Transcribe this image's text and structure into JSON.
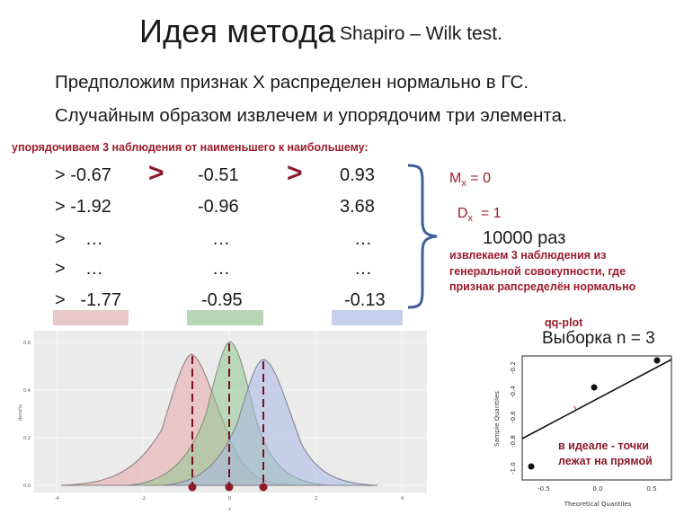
{
  "slide": {
    "title": "Идея метода",
    "subtitle": "Shapiro – Wilk test.",
    "line1": "Предположим признак X распределен нормально в ГС.",
    "line2": "Случайным образом извлечем и упорядочим три элемента.",
    "order_note": "упорядочиваем 3 наблюдения от наименьшего к наибольшему:"
  },
  "table": {
    "rows": [
      {
        "prefix": "> -0.67",
        "mid": "-0.51",
        "right": "0.93"
      },
      {
        "prefix": "> -1.92",
        "mid": "-0.96",
        "right": "3.68"
      },
      {
        "prefix": ">    …",
        "mid": "…",
        "right": "…"
      },
      {
        "prefix": ">    …",
        "mid": "…",
        "right": "…"
      },
      {
        "prefix": ">   -1.77",
        "mid": "-0.95",
        "right": "-0.13"
      }
    ],
    "gt_symbol": ">"
  },
  "stats": {
    "mx_base": "M",
    "mx_sub": "x",
    "mx_val": " = 0",
    "dx_base": "D",
    "dx_sub": "x",
    "dx_val": "  = 1",
    "times": "10000 раз",
    "extract_note": "извлекаем 3 наблюдения из генеральной совокупности, где признак рапсределён нормально"
  },
  "colors": {
    "swatch_left": "#e8c8c8",
    "swatch_mid": "#b7d6b7",
    "swatch_right": "#c4d0ec",
    "accent": "#8b1a2a"
  },
  "density_plot": {
    "ylabel": "density",
    "xlabel": "x",
    "yticks": [
      "0.0",
      "0.2",
      "0.4",
      "0.6"
    ],
    "xticks": [
      "-4",
      "-2",
      "0",
      "2",
      "4"
    ]
  },
  "qqplot": {
    "title": "qq-plot",
    "subtitle": "Выборка n = 3",
    "xlabel": "Theoretical Quantiles",
    "ylabel": "Sample Quantiles",
    "yticks": [
      "-1.0",
      "-0.8",
      "-0.6",
      "-0.4",
      "-0.2"
    ],
    "xticks": [
      "-0.5",
      "0.0",
      "0.5"
    ],
    "note": "в идеале - точки лежат на прямой"
  }
}
